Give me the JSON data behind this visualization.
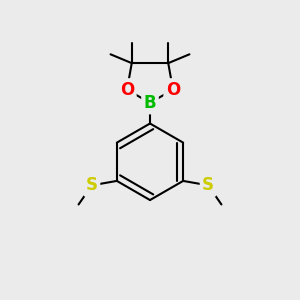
{
  "background_color": "#ebebeb",
  "atom_colors": {
    "B": "#00bb00",
    "O": "#ff0000",
    "S": "#cccc00",
    "C": "#000000"
  },
  "bond_color": "#000000",
  "bond_width": 1.5,
  "font_size_atoms": 12
}
